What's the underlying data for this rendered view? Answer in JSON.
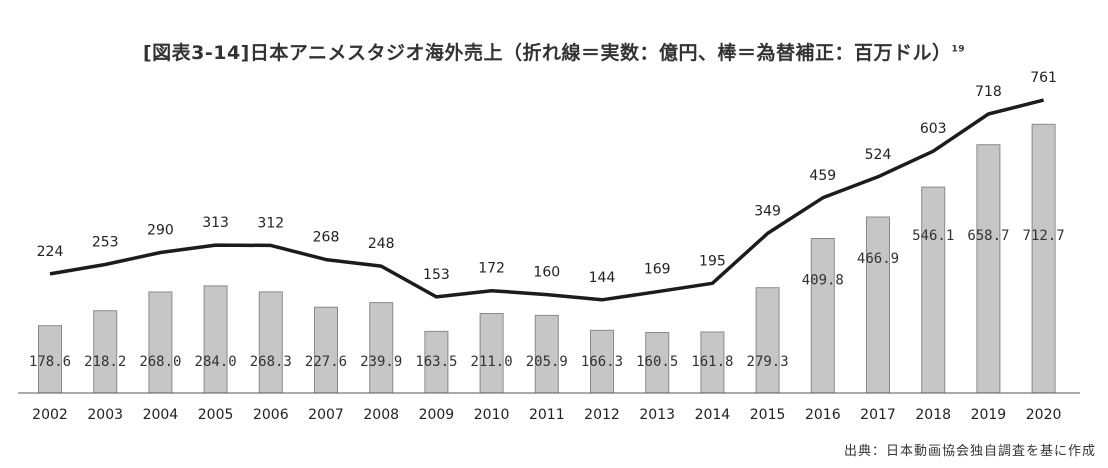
{
  "title": "[図表3-14]日本アニメスタジオ海外売上（折れ線＝実数：億円、棒＝為替補正：百万ドル）",
  "title_note": "19",
  "source": "出典：日本動画協会独自調査を基に作成",
  "chart_data": {
    "type": "bar",
    "categories": [
      "2002",
      "2003",
      "2004",
      "2005",
      "2006",
      "2007",
      "2008",
      "2009",
      "2010",
      "2011",
      "2012",
      "2013",
      "2014",
      "2015",
      "2016",
      "2017",
      "2018",
      "2019",
      "2020"
    ],
    "series": [
      {
        "type": "bar",
        "values": [
          178.6,
          218.2,
          268.0,
          284.0,
          268.3,
          227.6,
          239.9,
          163.5,
          211.0,
          205.9,
          166.3,
          160.5,
          161.8,
          279.3,
          409.8,
          466.9,
          546.1,
          658.7,
          712.7
        ],
        "labels": [
          "178.6",
          "218.2",
          "268.0",
          "284.0",
          "268.3",
          "227.6",
          "239.9",
          "163.5",
          "211.0",
          "205.9",
          "166.3",
          "160.5",
          "161.8",
          "279.3",
          "409.8",
          "466.9",
          "546.1",
          "658.7",
          "712.7"
        ]
      },
      {
        "type": "line",
        "values": [
          224,
          253,
          290,
          313,
          312,
          268,
          248,
          153,
          172,
          160,
          144,
          169,
          195,
          349,
          459,
          524,
          603,
          718,
          761
        ],
        "labels": [
          "224",
          "253",
          "290",
          "313",
          "312",
          "268",
          "248",
          "153",
          "172",
          "160",
          "144",
          "169",
          "195",
          "349",
          "459",
          "524",
          "603",
          "718",
          "761"
        ]
      }
    ],
    "grid": false
  }
}
